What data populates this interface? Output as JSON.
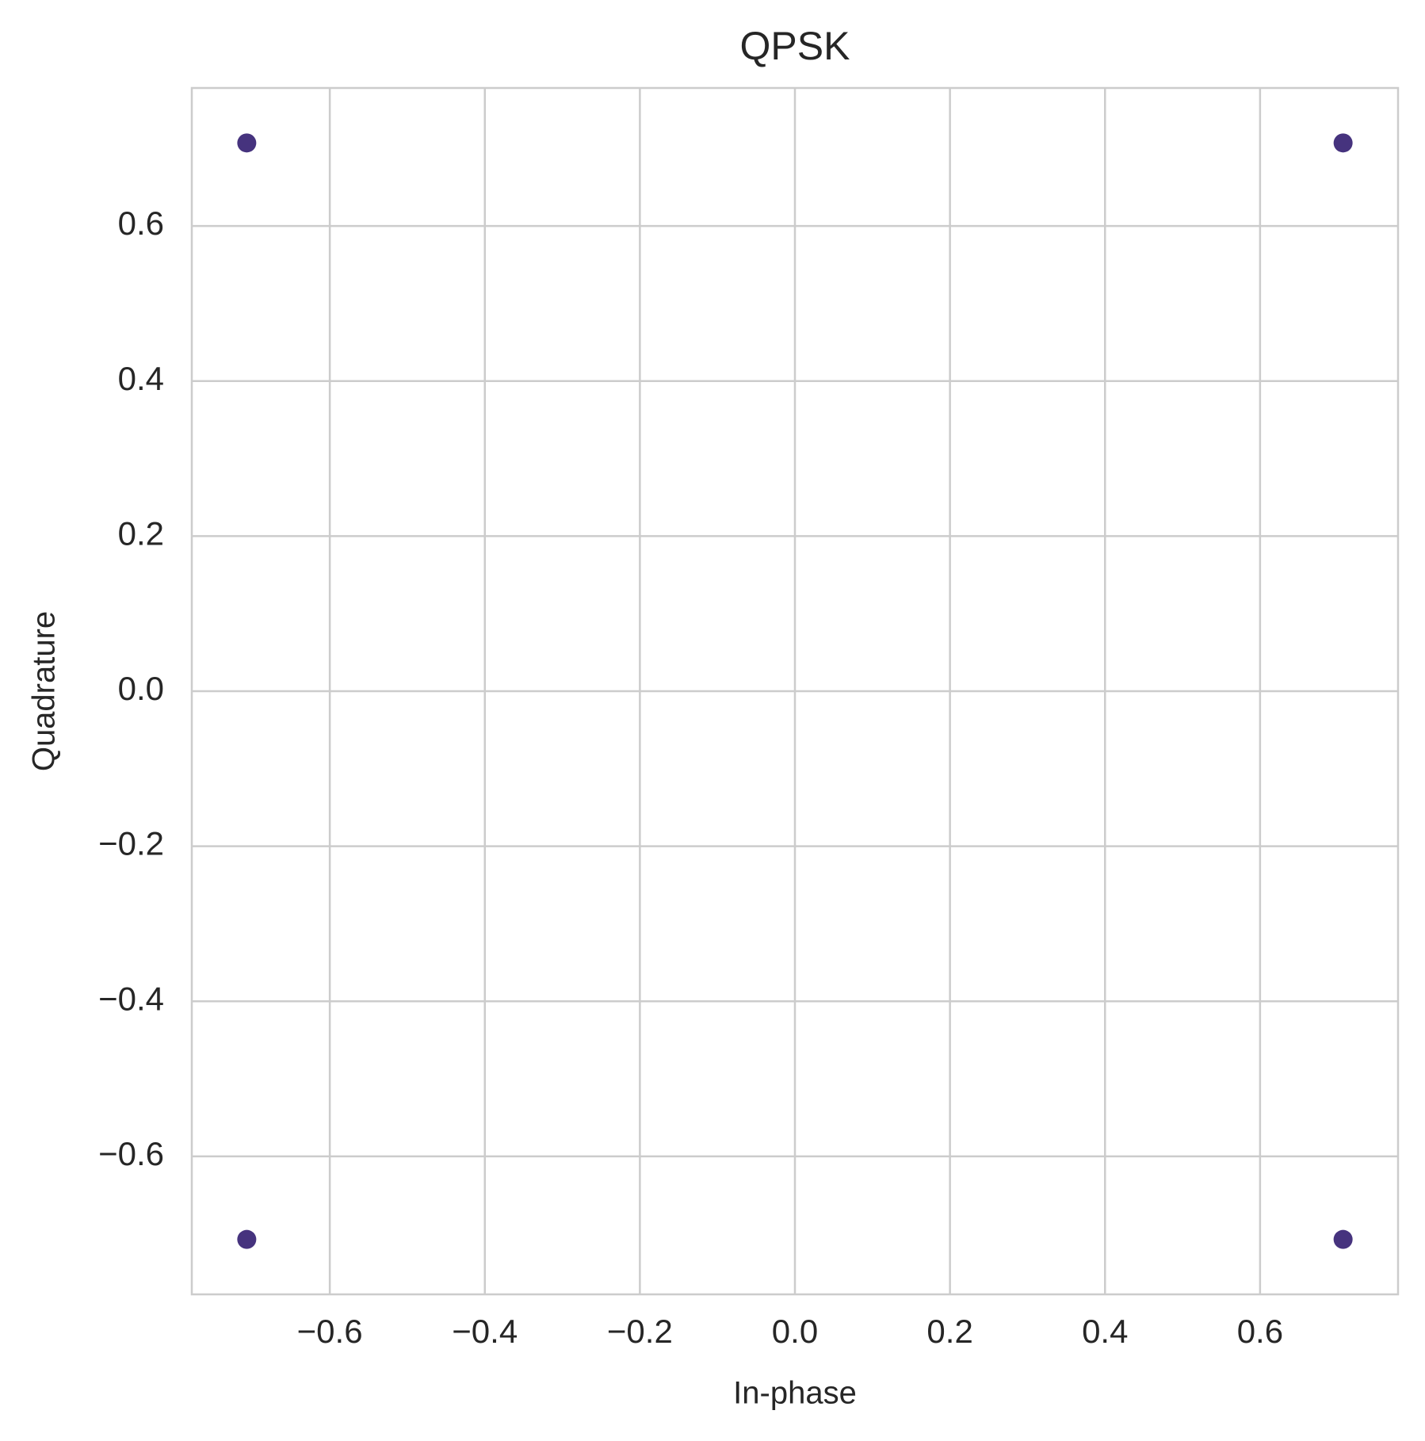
{
  "chart_data": {
    "type": "scatter",
    "title": "QPSK",
    "x_label": "In-phase",
    "y_label": "Quadrature",
    "series": [
      {
        "color": "#46337e",
        "x": [
          0.7071,
          -0.7071,
          -0.7071,
          0.7071
        ],
        "values": [
          0.7071,
          0.7071,
          -0.7071,
          -0.7071
        ]
      }
    ],
    "xlim": [
      -0.778,
      0.778
    ],
    "ylim": [
      -0.778,
      0.778
    ],
    "xticks": [
      {
        "value": -0.6,
        "label": "−0.6"
      },
      {
        "value": -0.4,
        "label": "−0.4"
      },
      {
        "value": -0.2,
        "label": "−0.2"
      },
      {
        "value": 0,
        "label": "0.0"
      },
      0.2,
      0.4,
      0.6
    ],
    "yticks": [
      {
        "value": -0.6,
        "label": "−0.6"
      },
      {
        "value": -0.4,
        "label": "−0.4"
      },
      {
        "value": -0.2,
        "label": "−0.2"
      },
      {
        "value": 0,
        "label": "0.0"
      },
      0.2,
      0.4,
      0.6
    ],
    "grid": true
  }
}
